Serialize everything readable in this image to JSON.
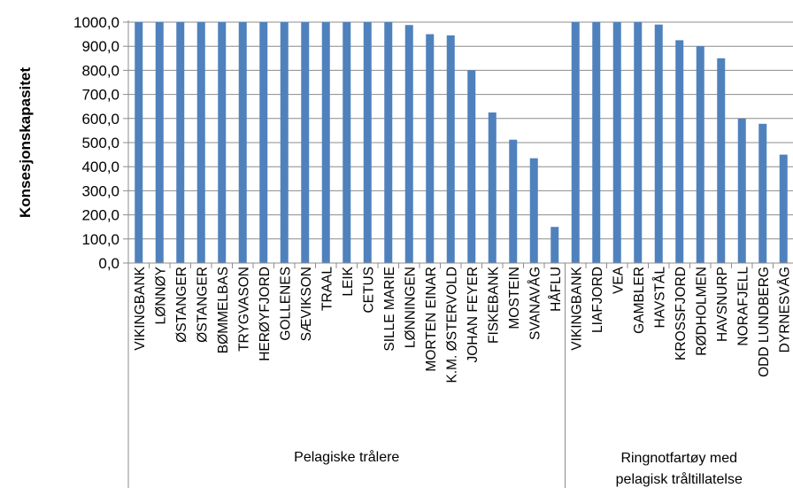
{
  "chart_data": {
    "type": "bar",
    "title": "",
    "ylabel": "Konsesjonskapasitet",
    "xlabel": "",
    "ylim": [
      0,
      1000
    ],
    "yticks": [
      "0,0",
      "100,0",
      "200,0",
      "300,0",
      "400,0",
      "500,0",
      "600,0",
      "700,0",
      "800,0",
      "900,0",
      "1000,0"
    ],
    "grid": true,
    "color": "#4F81BD",
    "categories": [
      "VIKINGBANK",
      "LØNNØY",
      "ØSTANGER",
      "ØSTANGER",
      "BØMMELBAS",
      "TRYGVASON",
      "HERØYFJORD",
      "GOLLENES",
      "SÆVIKSON",
      "TRAAL",
      "LEIK",
      "CETUS",
      "SILLE MARIE",
      "LØNNINGEN",
      "MORTEN EINAR",
      "K.M. ØSTERVOLD",
      "JOHAN FEYER",
      "FISKEBANK",
      "MOSTEIN",
      "SVANAVÅG",
      "HÅFLU",
      "VIKINGBANK",
      "LIAFJORD",
      "VEA",
      "GAMBLER",
      "HAVSTÅL",
      "KROSSFJORD",
      "RØDHOLMEN",
      "HAVSNURP",
      "NORAFJELL",
      "ODD LUNDBERG",
      "DYRNESVÅG"
    ],
    "values": [
      1000,
      1000,
      1000,
      1000,
      1000,
      1000,
      1000,
      1000,
      1000,
      1000,
      1000,
      1000,
      1000,
      988,
      950,
      945,
      800,
      625,
      512,
      435,
      150,
      1000,
      1000,
      1000,
      1000,
      990,
      925,
      900,
      850,
      600,
      578,
      450
    ],
    "groups": [
      {
        "label": "Pelagiske trålere",
        "start": 0,
        "end": 20
      },
      {
        "label": "Ringnotfartøy med pelagisk tråltillatelse",
        "lines": [
          "Ringnotfartøy med",
          "pelagisk tråltillatelse"
        ],
        "start": 21,
        "end": 31
      }
    ]
  }
}
